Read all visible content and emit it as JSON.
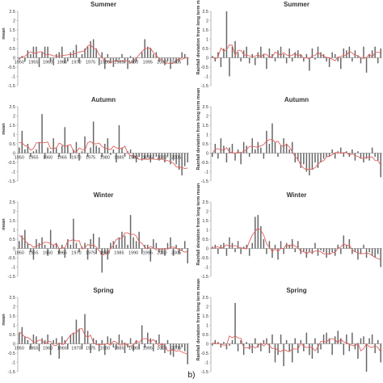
{
  "figure_label": "b)",
  "chart_data": [
    {
      "type": "bar",
      "title": "Summer",
      "ylabel": "mean",
      "ylim": [
        -1.5,
        2.5
      ],
      "yticks": [
        "2.5",
        "2",
        "1.5",
        "1",
        "0.5",
        "0",
        "-0.5",
        "-1",
        "-1.5"
      ],
      "xticks": [
        "1950",
        "1955",
        "1960",
        "1965",
        "1970",
        "1975",
        "1980",
        "1985",
        "1990",
        "1995",
        "2000",
        "2005"
      ],
      "x_start": 1950,
      "series": [
        {
          "name": "",
          "values": [
            -0.1,
            0.1,
            -0.2,
            0.4,
            0.2,
            0.6,
            0.6,
            -0.5,
            0.3,
            0.6,
            0.6,
            -0.2,
            -0.4,
            0.2,
            0.3,
            0.6,
            -0.3,
            -0.2,
            0.3,
            0.4,
            0.7,
            -0.3,
            0.2,
            0.5,
            0.6,
            0.9,
            1.0,
            0.5,
            -0.4,
            0.3,
            -0.6,
            0.2,
            -0.3,
            -0.5,
            -0.2,
            -0.1,
            0.2,
            -0.3,
            -0.6,
            0.1,
            -0.3,
            -0.2,
            0.0,
            0.3,
            1.0,
            0.6,
            0.5,
            0.2,
            0.3,
            -0.2,
            -0.1,
            -0.4,
            -0.2,
            -0.6,
            -0.1,
            -0.3,
            -0.2,
            0.3,
            0.2,
            -0.4
          ]
        }
      ]
    },
    {
      "type": "bar",
      "title": "Summer",
      "ylabel": "Rainfall deviation from long term mean",
      "ylim": [
        -1.5,
        2.5
      ],
      "yticks": [
        "2.5",
        "2",
        "1.5",
        "1",
        "0.5",
        "0",
        "-0.5",
        "-1",
        "-1.5"
      ],
      "xticks": [],
      "x_start": 1950,
      "series": [
        {
          "name": "",
          "values": [
            0.1,
            -0.2,
            0.3,
            -0.5,
            0.5,
            2.5,
            -1.0,
            0.6,
            0.9,
            0.3,
            -0.2,
            0.4,
            0.6,
            -0.3,
            0.2,
            -0.4,
            0.3,
            0.6,
            0.2,
            -0.6,
            0.5,
            0.2,
            -0.2,
            0.4,
            0.6,
            0.2,
            -0.3,
            0.5,
            -0.2,
            0.3,
            0.4,
            0.2,
            -0.2,
            0.2,
            -0.7,
            0.5,
            -0.1,
            0.6,
            0.3,
            0.2,
            -0.2,
            -0.5,
            0.3,
            0.2,
            -0.2,
            -0.6,
            0.5,
            0.4,
            0.6,
            -0.2,
            0.4,
            0.1,
            -0.3,
            0.6,
            -0.8,
            0.2,
            0.4,
            0.6,
            -0.3,
            0.5
          ]
        }
      ]
    },
    {
      "type": "bar",
      "title": "Autumn",
      "ylabel": "mean",
      "ylim": [
        -1.5,
        2.5
      ],
      "yticks": [
        "2.5",
        "2",
        "1.5",
        "1",
        "0.5",
        "0",
        "-0.5",
        "-1",
        "-1.5"
      ],
      "xticks": [
        "1950",
        "1955",
        "1960",
        "1965",
        "1970",
        "1975",
        "1980",
        "1985",
        "1990",
        "1995",
        "2000",
        "2005"
      ],
      "x_start": 1950,
      "series": [
        {
          "name": "",
          "values": [
            0.3,
            1.2,
            0.2,
            0.5,
            -0.2,
            0.1,
            0.2,
            0.6,
            2.1,
            -0.3,
            0.3,
            0.1,
            0.8,
            0.3,
            -0.2,
            0.4,
            1.4,
            0.4,
            -0.3,
            0.2,
            0.6,
            -0.4,
            0.1,
            0.9,
            -0.2,
            0.3,
            1.7,
            0.4,
            0.3,
            -0.2,
            0.5,
            0.8,
            -0.1,
            0.2,
            -0.5,
            1.5,
            0.3,
            -0.2,
            0.1,
            0.2,
            -0.3,
            -0.5,
            -0.2,
            -0.4,
            -0.3,
            -0.2,
            -0.5,
            -0.3,
            -0.2,
            -0.4,
            -0.3,
            -0.5,
            -0.2,
            -0.6,
            -0.4,
            -0.6,
            -0.9,
            -1.2,
            -0.7,
            -0.5
          ]
        }
      ]
    },
    {
      "type": "bar",
      "title": "Autumn",
      "ylabel": "Rainfall deviation from long term mean",
      "ylim": [
        -1.5,
        2.5
      ],
      "yticks": [
        "2.5",
        "2",
        "1.5",
        "1",
        "0.5",
        "0",
        "-0.5",
        "-1",
        "-1.5"
      ],
      "xticks": [],
      "x_start": 1950,
      "series": [
        {
          "name": "",
          "values": [
            -0.2,
            0.5,
            -0.3,
            0.8,
            0.4,
            -0.5,
            0.3,
            0.5,
            -0.4,
            0.2,
            -0.6,
            0.6,
            0.4,
            -0.2,
            0.8,
            0.2,
            0.6,
            0.3,
            -0.3,
            1.2,
            0.5,
            1.6,
            0.6,
            -0.2,
            0.4,
            0.8,
            0.5,
            0.2,
            0.6,
            -0.5,
            -0.4,
            -0.8,
            -0.6,
            -1.0,
            -1.2,
            -0.9,
            -0.5,
            -0.8,
            -0.5,
            -0.3,
            -0.2,
            -0.2,
            0.2,
            -0.3,
            0.1,
            0.3,
            -0.2,
            0.1,
            -0.2,
            0.2,
            -0.4,
            0.1,
            -0.3,
            -0.5,
            -0.3,
            -0.4,
            0.3,
            -0.2,
            -0.4,
            -1.3
          ]
        }
      ]
    },
    {
      "type": "bar",
      "title": "Winter",
      "ylabel": "mean",
      "ylim": [
        -1.5,
        2.5
      ],
      "yticks": [
        "2.5",
        "2",
        "1.5",
        "1",
        "0.5",
        "0",
        "-0.5",
        "-1",
        "-1.5"
      ],
      "xticks": [
        "1950",
        "1955",
        "1960",
        "1965",
        "1970",
        "1975",
        "1980",
        "1985",
        "1990",
        "1995",
        "2000",
        "2005"
      ],
      "x_start": 1950,
      "series": [
        {
          "name": "",
          "values": [
            0.4,
            0.7,
            1.0,
            0.3,
            -0.2,
            -0.6,
            0.5,
            0.3,
            0.6,
            0.2,
            -0.4,
            1.0,
            0.2,
            0.3,
            -0.3,
            0.2,
            -0.5,
            0.5,
            0.2,
            1.6,
            0.3,
            -0.2,
            0.1,
            0.3,
            -0.6,
            0.5,
            0.8,
            -0.3,
            0.6,
            -1.3,
            -0.3,
            -0.6,
            0.3,
            0.4,
            0.2,
            0.6,
            0.9,
            0.7,
            0.2,
            1.8,
            0.6,
            0.4,
            0.9,
            -0.3,
            0.2,
            0.2,
            -0.7,
            0.5,
            0.3,
            -0.2,
            -0.3,
            -0.4,
            0.3,
            0.6,
            -0.4,
            0.2,
            -0.3,
            -0.1,
            0.4,
            -0.8
          ]
        }
      ]
    },
    {
      "type": "bar",
      "title": "Winter",
      "ylabel": "Rainfall deviation from long term mean",
      "ylim": [
        -1.5,
        2.5
      ],
      "yticks": [
        "2.5",
        "2",
        "1.5",
        "1",
        "0.5",
        "0",
        "-0.5",
        "-1",
        "-1.5"
      ],
      "xticks": [],
      "x_start": 1950,
      "series": [
        {
          "name": "",
          "values": [
            0.1,
            0.2,
            -0.3,
            0.2,
            0.3,
            -0.4,
            0.6,
            0.3,
            -0.2,
            0.4,
            -0.3,
            0.1,
            0.2,
            -0.4,
            0.3,
            1.7,
            1.8,
            1.2,
            0.5,
            -0.3,
            0.4,
            -0.5,
            0.2,
            -0.6,
            0.4,
            -0.3,
            0.3,
            0.2,
            0.5,
            -0.2,
            0.4,
            -0.3,
            -0.2,
            -0.5,
            -0.2,
            -0.3,
            0.3,
            -0.4,
            -0.1,
            -0.2,
            -0.5,
            -0.3,
            -0.2,
            -0.4,
            0.2,
            -0.3,
            0.7,
            0.2,
            0.5,
            -0.3,
            -0.2,
            -0.6,
            -0.3,
            0.2,
            -0.5,
            -0.2,
            -0.4,
            -0.5,
            -0.3,
            -1.0
          ]
        }
      ]
    },
    {
      "type": "bar",
      "title": "Spring",
      "ylabel": "mean",
      "ylim": [
        -1.5,
        2.5
      ],
      "yticks": [
        "2.5",
        "2",
        "1.5",
        "1",
        "0.5",
        "0",
        "-0.5",
        "-1",
        "-1.5"
      ],
      "xticks": [
        "1950",
        "1955",
        "1960",
        "1965",
        "1970",
        "1975",
        "1980",
        "1985",
        "1990",
        "1995",
        "2000",
        "2005"
      ],
      "x_start": 1950,
      "series": [
        {
          "name": "",
          "values": [
            0.6,
            0.9,
            0.4,
            0.2,
            -0.3,
            0.5,
            0.4,
            -0.4,
            0.3,
            0.2,
            0.5,
            -0.6,
            0.2,
            0.3,
            -0.8,
            0.4,
            0.2,
            -0.3,
            0.5,
            0.6,
            1.3,
            0.8,
            -0.3,
            1.6,
            0.7,
            -0.5,
            0.3,
            0.2,
            -0.4,
            0.2,
            -0.6,
            0.4,
            0.3,
            -0.2,
            -0.3,
            0.5,
            0.2,
            -0.5,
            -0.2,
            0.3,
            -0.4,
            0.2,
            -0.3,
            1.0,
            -0.2,
            0.6,
            0.3,
            -0.4,
            0.2,
            0.5,
            -0.3,
            -0.5,
            0.2,
            -0.6,
            -0.7,
            -0.2,
            -0.3,
            -0.2,
            -0.4,
            -1.1
          ]
        }
      ]
    },
    {
      "type": "bar",
      "title": "Spring",
      "ylabel": "Rainfall deviation from long term mean",
      "ylim": [
        -1.5,
        2.5
      ],
      "yticks": [
        "2.5",
        "2",
        "1.5",
        "1",
        "0.5",
        "0",
        "-0.5",
        "-1",
        "-1.5"
      ],
      "xticks": [],
      "x_start": 1950,
      "series": [
        {
          "name": "",
          "values": [
            -0.1,
            0.2,
            0.1,
            -0.2,
            0.1,
            -0.3,
            -0.1,
            0.2,
            2.2,
            -0.4,
            0.2,
            -0.6,
            0.1,
            -0.3,
            -0.5,
            0.3,
            -0.2,
            -0.4,
            0.2,
            0.3,
            -0.5,
            0.5,
            -1.0,
            -0.6,
            0.5,
            -1.2,
            0.2,
            -0.4,
            -1.0,
            0.3,
            -0.5,
            0.2,
            -0.4,
            0.6,
            -0.6,
            -0.8,
            0.3,
            -0.5,
            -0.3,
            0.5,
            0.6,
            0.3,
            -0.6,
            0.4,
            0.7,
            0.3,
            -0.6,
            0.5,
            -0.4,
            0.6,
            -0.3,
            -0.8,
            0.3,
            0.4,
            -1.5,
            0.3,
            0.5,
            -0.5,
            0.2,
            -1.0
          ]
        }
      ]
    }
  ]
}
